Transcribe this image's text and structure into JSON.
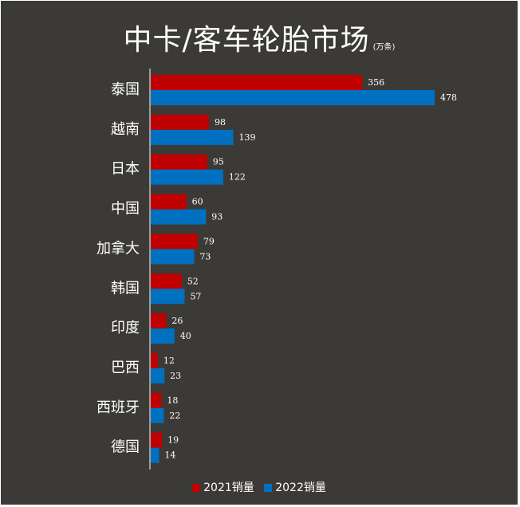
{
  "title": "中卡/客车轮胎市场",
  "unit": "(万条)",
  "colors": {
    "background": "#3c3a37",
    "series_2021": "#c00000",
    "series_2022": "#0070c0"
  },
  "legend": {
    "s1": "2021销量",
    "s2": "2022销量"
  },
  "chart_data": {
    "type": "bar",
    "orientation": "horizontal",
    "title": "中卡/客车轮胎市场",
    "unit": "(万条)",
    "categories": [
      "泰国",
      "越南",
      "日本",
      "中国",
      "加拿大",
      "韩国",
      "印度",
      "巴西",
      "西班牙",
      "德国"
    ],
    "series": [
      {
        "name": "2021销量",
        "color": "#c00000",
        "values": [
          356,
          98,
          95,
          60,
          79,
          52,
          26,
          12,
          18,
          19
        ]
      },
      {
        "name": "2022销量",
        "color": "#0070c0",
        "values": [
          478,
          139,
          122,
          93,
          73,
          57,
          40,
          23,
          22,
          14
        ]
      }
    ],
    "xlim": [
      0,
      478
    ],
    "grid": false,
    "data_labels": true,
    "legend_position": "bottom"
  }
}
